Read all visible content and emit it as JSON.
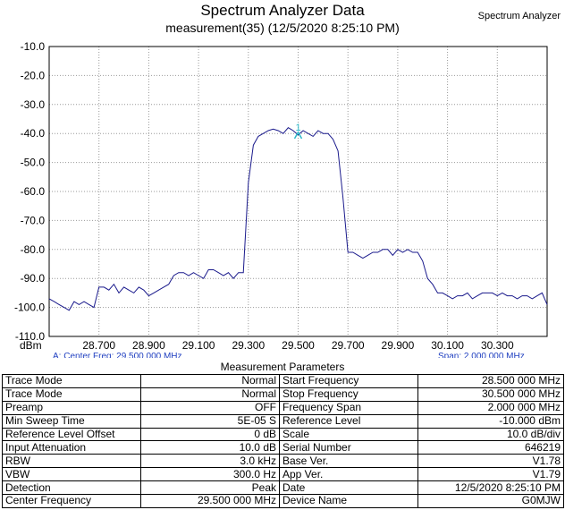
{
  "header": {
    "title": "Spectrum Analyzer Data",
    "subtitle": "measurement(35) (12/5/2020 8:25:10 PM)",
    "corner_label": "Spectrum Analyzer"
  },
  "footer": {
    "left_text": "A: Center Freq: 29.500 000 MHz",
    "right_text": "Span: 2.000 000 MHz"
  },
  "colors": {
    "trace": "#1a1a8c",
    "marker": "#2fb8c8",
    "grid": "#999999"
  },
  "chart_data": {
    "type": "line",
    "ylabel": "dBm",
    "ylim": [
      -110,
      -10
    ],
    "xlim": [
      28.5,
      30.5
    ],
    "y_ticks": [
      "-10.0",
      "-20.0",
      "-30.0",
      "-40.0",
      "-50.0",
      "-60.0",
      "-70.0",
      "-80.0",
      "-90.0",
      "-100.0",
      "-110.0"
    ],
    "x_ticks": [
      "28.700",
      "28.900",
      "29.100",
      "29.300",
      "29.500",
      "29.700",
      "29.900",
      "30.100",
      "30.300"
    ],
    "marker": {
      "label": "1",
      "x": 29.5,
      "y": -40.5
    },
    "series": [
      {
        "x": [
          28.5,
          28.52,
          28.54,
          28.56,
          28.58,
          28.6,
          28.62,
          28.64,
          28.66,
          28.68,
          28.7,
          28.72,
          28.74,
          28.76,
          28.78,
          28.8,
          28.82,
          28.84,
          28.86,
          28.88,
          28.9,
          28.92,
          28.94,
          28.96,
          28.98,
          29.0,
          29.02,
          29.04,
          29.06,
          29.08,
          29.1,
          29.12,
          29.14,
          29.16,
          29.18,
          29.2,
          29.22,
          29.24,
          29.26,
          29.28,
          29.3,
          29.32,
          29.34,
          29.36,
          29.38,
          29.4,
          29.42,
          29.44,
          29.46,
          29.48,
          29.5,
          29.52,
          29.54,
          29.56,
          29.58,
          29.6,
          29.62,
          29.64,
          29.66,
          29.68,
          29.7,
          29.72,
          29.74,
          29.76,
          29.78,
          29.8,
          29.82,
          29.84,
          29.86,
          29.88,
          29.9,
          29.92,
          29.94,
          29.96,
          29.98,
          30.0,
          30.02,
          30.04,
          30.06,
          30.08,
          30.1,
          30.12,
          30.14,
          30.16,
          30.18,
          30.2,
          30.22,
          30.24,
          30.26,
          30.28,
          30.3,
          30.32,
          30.34,
          30.36,
          30.38,
          30.4,
          30.42,
          30.44,
          30.46,
          30.48,
          30.5
        ],
        "y": [
          -97,
          -98,
          -99,
          -100,
          -101,
          -98,
          -99,
          -98,
          -99,
          -100,
          -93,
          -93,
          -94,
          -92,
          -95,
          -93,
          -94,
          -95,
          -93,
          -94,
          -96,
          -95,
          -94,
          -93,
          -92,
          -89,
          -88,
          -88,
          -89,
          -88,
          -89,
          -90,
          -87,
          -87,
          -88,
          -89,
          -88,
          -90,
          -88,
          -88,
          -57,
          -44,
          -41,
          -40,
          -39,
          -38.5,
          -39,
          -40,
          -38,
          -39,
          -40.5,
          -39,
          -40,
          -41,
          -39,
          -40,
          -40,
          -42,
          -46,
          -62,
          -81,
          -81,
          -82,
          -83,
          -82,
          -81,
          -81,
          -80,
          -80,
          -82,
          -80,
          -81,
          -80,
          -81,
          -81,
          -84,
          -90,
          -92,
          -95,
          -95,
          -96,
          -97,
          -96,
          -96,
          -95,
          -97,
          -96,
          -95,
          -95,
          -95,
          -96,
          -95,
          -96,
          -96,
          -97,
          -96,
          -96,
          -97,
          -96,
          -95,
          -99
        ]
      }
    ]
  },
  "params": {
    "title": "Measurement Parameters",
    "rows": [
      [
        "Trace Mode",
        "Normal",
        "Start Frequency",
        "28.500 000 MHz"
      ],
      [
        "Trace Mode",
        "Normal",
        "Stop Frequency",
        "30.500 000 MHz"
      ],
      [
        "Preamp",
        "OFF",
        "Frequency Span",
        "2.000 000 MHz"
      ],
      [
        "Min Sweep Time",
        "5E-05 S",
        "Reference Level",
        "-10.000  dBm"
      ],
      [
        "Reference Level Offset",
        "0 dB",
        "Scale",
        "10.0  dB/div"
      ],
      [
        "Input Attenuation",
        "10.0 dB",
        "Serial Number",
        "646219"
      ],
      [
        "RBW",
        "3.0 kHz",
        "Base Ver.",
        "V1.78"
      ],
      [
        "VBW",
        "300.0 Hz",
        "App Ver.",
        "V1.79"
      ],
      [
        "Detection",
        "Peak",
        "Date",
        "12/5/2020 8:25:10 PM"
      ],
      [
        "Center Frequency",
        "29.500 000 MHz",
        "Device Name",
        "G0MJW"
      ]
    ]
  }
}
